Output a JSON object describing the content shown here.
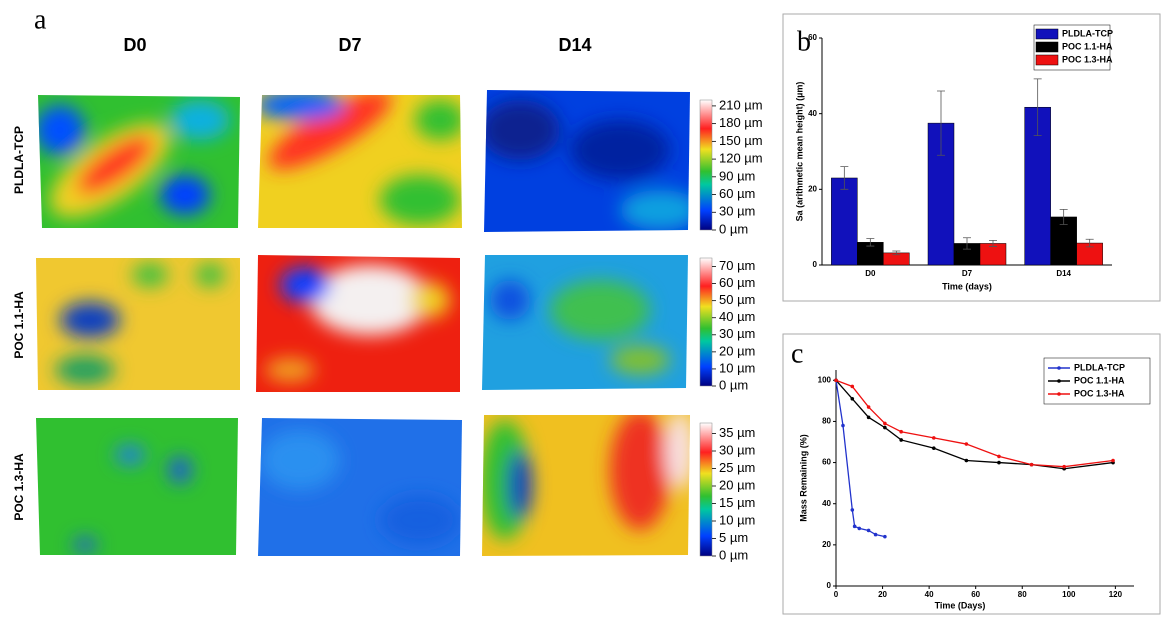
{
  "panel_a": {
    "label": "a",
    "columns": [
      "D0",
      "D7",
      "D14"
    ],
    "rows": [
      "PLDLA-TCP",
      "POC 1.1-HA",
      "POC 1.3-HA"
    ],
    "colorbars": [
      {
        "lim": [
          0,
          220
        ],
        "ticks": [
          {
            "value": 0,
            "label": "0 µm"
          },
          {
            "value": 30,
            "label": "30 µm"
          },
          {
            "value": 60,
            "label": "60 µm"
          },
          {
            "value": 90,
            "label": "90 µm"
          },
          {
            "value": 120,
            "label": "120 µm"
          },
          {
            "value": 150,
            "label": "150 µm"
          },
          {
            "value": 180,
            "label": "180 µm"
          },
          {
            "value": 210,
            "label": "210 µm"
          }
        ]
      },
      {
        "lim": [
          0,
          75
        ],
        "ticks": [
          {
            "value": 0,
            "label": "0 µm"
          },
          {
            "value": 10,
            "label": "10 µm"
          },
          {
            "value": 20,
            "label": "20 µm"
          },
          {
            "value": 30,
            "label": "30 µm"
          },
          {
            "value": 40,
            "label": "40 µm"
          },
          {
            "value": 50,
            "label": "50 µm"
          },
          {
            "value": 60,
            "label": "60 µm"
          },
          {
            "value": 70,
            "label": "70 µm"
          }
        ]
      },
      {
        "lim": [
          0,
          38
        ],
        "ticks": [
          {
            "value": 0,
            "label": "0 µm"
          },
          {
            "value": 5,
            "label": "5 µm"
          },
          {
            "value": 10,
            "label": "10 µm"
          },
          {
            "value": 15,
            "label": "15 µm"
          },
          {
            "value": 20,
            "label": "20 µm"
          },
          {
            "value": 25,
            "label": "25 µm"
          },
          {
            "value": 30,
            "label": "30 µm"
          },
          {
            "value": 35,
            "label": "35 µm"
          }
        ]
      }
    ]
  },
  "chart_data": [
    {
      "type": "bar",
      "label": "b",
      "categories": [
        "D0",
        "D7",
        "D14"
      ],
      "x_label": "Time (days)",
      "y_label": "Sa (arithmetic mean height) (µm)",
      "ylim": [
        0,
        60
      ],
      "yticks": [
        0,
        20,
        40,
        60
      ],
      "legend": "top-right",
      "series": [
        {
          "name": "PLDLA-TCP",
          "color": "#1111bb",
          "values": [
            23,
            37.5,
            41.7
          ],
          "errors": [
            3,
            8.5,
            7.5
          ]
        },
        {
          "name": "POC 1.1-HA",
          "color": "#000000",
          "values": [
            6,
            5.7,
            12.7
          ],
          "errors": [
            1,
            1.5,
            2
          ]
        },
        {
          "name": "POC 1.3-HA",
          "color": "#ee1111",
          "values": [
            3.2,
            5.7,
            5.8
          ],
          "errors": [
            0.5,
            0.8,
            1
          ]
        }
      ]
    },
    {
      "type": "line",
      "label": "c",
      "x_label": "Time (Days)",
      "y_label": "Mass Remaining (%)",
      "xlim": [
        0,
        128
      ],
      "xticks": [
        0,
        20,
        40,
        60,
        80,
        100,
        120
      ],
      "ylim": [
        0,
        105
      ],
      "yticks": [
        0,
        20,
        40,
        60,
        80,
        100
      ],
      "legend": "top-right",
      "series": [
        {
          "name": "PLDLA-TCP",
          "color": "#2233cc",
          "x": [
            0,
            3,
            7,
            8,
            10,
            14,
            17,
            21
          ],
          "values": [
            100,
            78,
            37,
            29,
            28,
            27,
            25,
            24
          ]
        },
        {
          "name": "POC 1.1-HA",
          "color": "#000000",
          "x": [
            0,
            7,
            14,
            21,
            28,
            42,
            56,
            70,
            84,
            98,
            119
          ],
          "values": [
            100,
            91,
            82,
            77,
            71,
            67,
            61,
            60,
            59,
            57,
            60
          ]
        },
        {
          "name": "POC 1.3-HA",
          "color": "#ee1111",
          "x": [
            0,
            7,
            14,
            21,
            28,
            42,
            56,
            70,
            84,
            98,
            119
          ],
          "values": [
            100,
            97,
            87,
            79,
            75,
            72,
            69,
            63,
            59,
            58,
            61
          ]
        }
      ]
    }
  ]
}
